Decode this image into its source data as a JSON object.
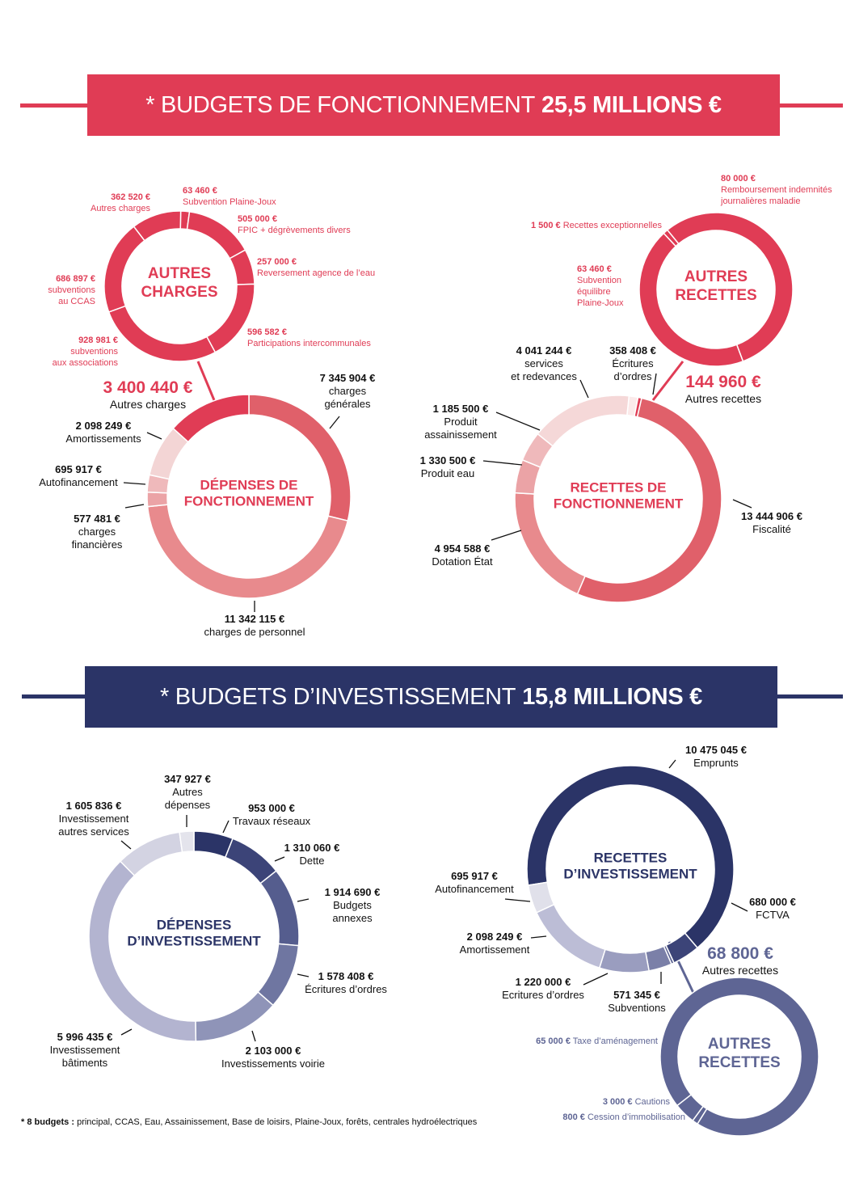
{
  "colors": {
    "red": "#e03c55",
    "navy": "#2b3467",
    "slate": "#5e6594"
  },
  "banner_fonctionnement": {
    "prefix": "* BUDGETS DE FONCTIONNEMENT",
    "amount": "25,5 MILLIONS €"
  },
  "banner_investissement": {
    "prefix": "* BUDGETS D’INVESTISSEMENT",
    "amount": "15,8 MILLIONS €"
  },
  "footnote": {
    "bold": "* 8 budgets :",
    "text": " principal, CCAS, Eau, Assainissement, Base de loisirs, Plaine-Joux, forêts, centrales hydroélectriques"
  },
  "chart_data": [
    {
      "type": "pie",
      "title": "AUTRES\nCHARGES",
      "segments": [
        {
          "value": 63460,
          "value_label": "63 460 €",
          "label": "Subvention Plaine-Joux",
          "color": "#e03c55"
        },
        {
          "value": 505000,
          "value_label": "505 000 €",
          "label": "FPIC + dégrèvements divers",
          "color": "#e03c55"
        },
        {
          "value": 257000,
          "value_label": "257 000 €",
          "label": "Reversement agence de l’eau",
          "color": "#e03c55"
        },
        {
          "value": 596582,
          "value_label": "596 582 €",
          "label": "Participations intercommunales",
          "color": "#e03c55"
        },
        {
          "value": 928981,
          "value_label": "928 981 €",
          "label": "subventions\naux associations",
          "color": "#e03c55"
        },
        {
          "value": 686897,
          "value_label": "686 897 €",
          "label": "subventions\nau CCAS",
          "color": "#e03c55"
        },
        {
          "value": 362520,
          "value_label": "362 520 €",
          "label": "Autres charges",
          "color": "#e03c55"
        }
      ]
    },
    {
      "type": "pie",
      "title": "DÉPENSES DE\nFONCTIONNEMENT",
      "segments": [
        {
          "value": 7345904,
          "value_label": "7 345 904 €",
          "label": "charges\ngénérales",
          "color": "#e0606a"
        },
        {
          "value": 11342115,
          "value_label": "11 342 115 €",
          "label": "charges de personnel",
          "color": "#e88a8d"
        },
        {
          "value": 577481,
          "value_label": "577 481 €",
          "label": "charges\nfinancières",
          "color": "#eba3a6"
        },
        {
          "value": 695917,
          "value_label": "695 917 €",
          "label": "Autofinancement",
          "color": "#efb9bb"
        },
        {
          "value": 2098249,
          "value_label": "2 098 249 €",
          "label": "Amortissements",
          "color": "#f3d5d5"
        },
        {
          "value": 3400440,
          "value_label": "3 400 440 €",
          "label": "Autres charges",
          "color": "#e03c55"
        }
      ]
    },
    {
      "type": "pie",
      "title": "AUTRES\nRECETTES",
      "segments": [
        {
          "value": 1500,
          "value_label": "1 500 €",
          "label": " Recettes exceptionnelles",
          "color": "#e03c55"
        },
        {
          "value": 80000,
          "value_label": "80 000 €",
          "label": "Remboursement indemnités\njournalières maladie",
          "color": "#e03c55"
        },
        {
          "value": 63460,
          "value_label": "63 460 €",
          "label": "Subvention\néquilibre\nPlaine-Joux",
          "color": "#e03c55"
        }
      ]
    },
    {
      "type": "pie",
      "title": "RECETTES DE\nFONCTIONNEMENT",
      "segments": [
        {
          "value": 358408,
          "value_label": "358 408 €",
          "label": "Écritures\nd’ordres",
          "color": "#fbeaea"
        },
        {
          "value": 144960,
          "value_label": "144 960 €",
          "label": "Autres recettes",
          "color": "#e03c55"
        },
        {
          "value": 13444906,
          "value_label": "13 444 906 €",
          "label": "Fiscalité",
          "color": "#e0606a"
        },
        {
          "value": 4954588,
          "value_label": "4 954 588 €",
          "label": "Dotation État",
          "color": "#e88a8d"
        },
        {
          "value": 1330500,
          "value_label": "1 330 500 €",
          "label": "Produit eau",
          "color": "#eba3a6"
        },
        {
          "value": 1185500,
          "value_label": "1 185 500 €",
          "label": "Produit\nassainissement",
          "color": "#efb9bb"
        },
        {
          "value": 4041244,
          "value_label": "4 041 244 €",
          "label": "services\net redevances",
          "color": "#f5d8d8"
        }
      ]
    },
    {
      "type": "pie",
      "title": "DÉPENSES\nD’INVESTISSEMENT",
      "segments": [
        {
          "value": 953000,
          "value_label": "953 000 €",
          "label": "Travaux réseaux",
          "color": "#2b3467"
        },
        {
          "value": 1310060,
          "value_label": "1 310 060 €",
          "label": "Dette",
          "color": "#3c4478"
        },
        {
          "value": 1914690,
          "value_label": "1 914 690 €",
          "label": "Budgets\nannexes",
          "color": "#555d8e"
        },
        {
          "value": 1578408,
          "value_label": "1 578 408 €",
          "label": "Écritures d’ordres",
          "color": "#6f76a1"
        },
        {
          "value": 2103000,
          "value_label": "2 103 000 €",
          "label": "Investissements voirie",
          "color": "#8f94b8"
        },
        {
          "value": 5996435,
          "value_label": "5 996 435 €",
          "label": "Investissement\nbâtiments",
          "color": "#b3b4d0"
        },
        {
          "value": 1605836,
          "value_label": "1 605 836 €",
          "label": "Investissement\nautres services",
          "color": "#d3d3e2"
        },
        {
          "value": 347927,
          "value_label": "347 927 €",
          "label": "Autres\ndépenses",
          "color": "#e4e4ec"
        }
      ]
    },
    {
      "type": "pie",
      "title": "RECETTES\nD’INVESTISSEMENT",
      "segments": [
        {
          "value": 10475045,
          "value_label": "10 475 045 €",
          "label": "Emprunts",
          "color": "#2b3467"
        },
        {
          "value": 680000,
          "value_label": "680 000 €",
          "label": "FCTVA",
          "color": "#3c4478"
        },
        {
          "value": 68800,
          "value_label": "68 800 €",
          "label": "Autres recettes",
          "color": "#5e6594"
        },
        {
          "value": 571345,
          "value_label": "571 345 €",
          "label": "Subventions",
          "color": "#7b80a8"
        },
        {
          "value": 1220000,
          "value_label": "1 220 000 €",
          "label": "Ecritures d’ordres",
          "color": "#9a9dbf"
        },
        {
          "value": 2098249,
          "value_label": "2 098 249 €",
          "label": "Amortissement",
          "color": "#bcbdd6"
        },
        {
          "value": 695917,
          "value_label": "695 917 €",
          "label": "Autofinancement",
          "color": "#e0e0ea"
        }
      ]
    },
    {
      "type": "pie",
      "title": "AUTRES\nRECETTES",
      "segments": [
        {
          "value": 800,
          "value_label": "800 €",
          "label": " Cession d’immobilisation",
          "color": "#5e6594"
        },
        {
          "value": 3000,
          "value_label": "3 000 €",
          "label": " Cautions",
          "color": "#5e6594"
        },
        {
          "value": 65000,
          "value_label": "65 000 €",
          "label": " Taxe d’aménagement",
          "color": "#5e6594"
        }
      ]
    }
  ]
}
